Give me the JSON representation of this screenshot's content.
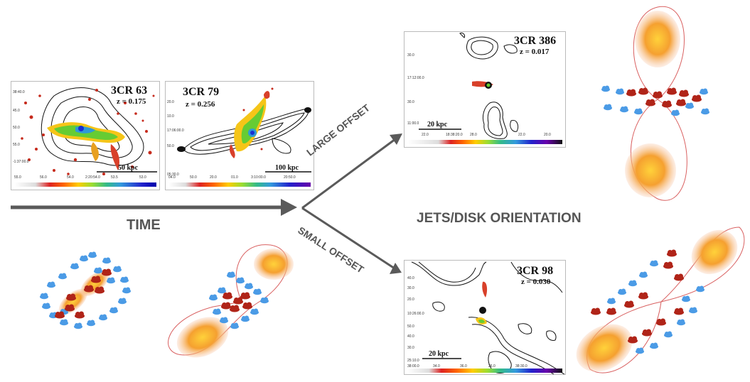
{
  "labels": {
    "time": "TIME",
    "large_offset": "LARGE OFFSET",
    "small_offset": "SMALL OFFSET",
    "orientation": "JETS/DISK ORIENTATION"
  },
  "panels": {
    "p63": {
      "name": "3CR 63",
      "z": "z = 0.175",
      "scale": "50 kpc",
      "yticks": [
        "38:40.0",
        "45.0",
        "50.0",
        "55.0",
        "-1:37:00.0"
      ],
      "xticks": [
        "55.0",
        "56.0",
        "54.0",
        "2:20:54.0",
        "53.5",
        "53.0"
      ]
    },
    "p79": {
      "name": "3CR 79",
      "z": "z = 0.256",
      "scale": "100 kpc",
      "yticks": [
        "20.0",
        "10.0",
        "17:06:00.0",
        "50.0",
        "05:30.0"
      ],
      "xticks": [
        "04.0",
        "50.0",
        "20.0",
        "01.0",
        "3:10:00.0",
        "20:50.0"
      ]
    },
    "p386": {
      "name": "3CR 386",
      "z": "z = 0.017",
      "scale": "20 kpc",
      "yticks": [
        "30.0",
        "17:12:00.0",
        "30.0",
        "11:00.0"
      ],
      "xticks": [
        "22.0",
        "18:38:20.0",
        "28.0",
        "22.0",
        "20.0"
      ]
    },
    "p98": {
      "name": "3CR 98",
      "z": "z = 0.030",
      "scale": "20 kpc",
      "yticks": [
        "40.0",
        "30.0",
        "20.0",
        "10:26:00.0",
        "50.0",
        "40.0",
        "30.0",
        "25:10.0"
      ],
      "xticks": [
        "38:00.0",
        "34.0",
        "36.0",
        "26.0",
        "38:30.0"
      ]
    }
  }
}
